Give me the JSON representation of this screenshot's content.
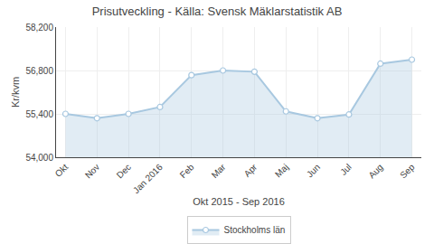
{
  "chart_data": {
    "type": "area",
    "title": "Prisutveckling - Källa: Svensk Mäklarstatistik AB",
    "xlabel": "Okt 2015 - Sep 2016",
    "ylabel": "Kr/kvm",
    "categories": [
      "Okt",
      "Nov",
      "Dec",
      "Jan 2016",
      "Feb",
      "Mar",
      "Apr",
      "Maj",
      "Jun",
      "Jul",
      "Aug",
      "Sep"
    ],
    "series": [
      {
        "name": "Stockholms län",
        "color": "#a8c8e0",
        "marker": "circle",
        "values": [
          55400,
          55260,
          55400,
          55620,
          56650,
          56800,
          56760,
          55480,
          55260,
          55380,
          57020,
          57150
        ]
      }
    ],
    "ylim": [
      54000,
      58200
    ],
    "yticks": [
      {
        "value": 54000,
        "label": "54,000"
      },
      {
        "value": 55400,
        "label": "55,400"
      },
      {
        "value": 56800,
        "label": "56,800"
      },
      {
        "value": 58200,
        "label": "58,200"
      }
    ],
    "grid": true,
    "legend": "bottom"
  }
}
